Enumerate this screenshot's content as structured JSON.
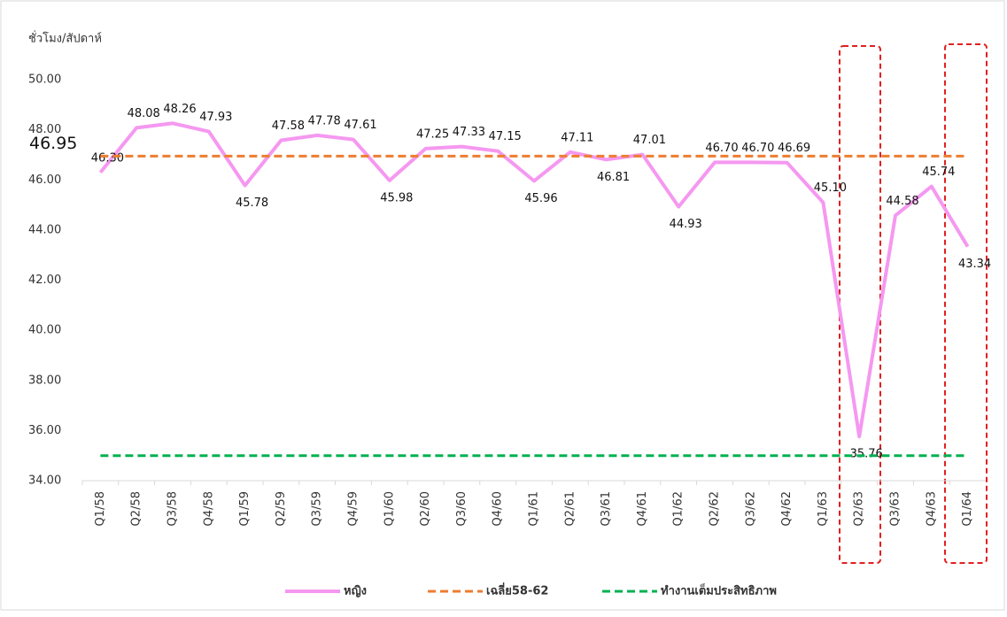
{
  "chart_data": {
    "type": "line",
    "y_axis_label": "ชั่วโมง/สัปดาห์",
    "categories": [
      "Q1/58",
      "Q2/58",
      "Q3/58",
      "Q4/58",
      "Q1/59",
      "Q2/59",
      "Q3/59",
      "Q4/59",
      "Q1/60",
      "Q2/60",
      "Q3/60",
      "Q4/60",
      "Q1/61",
      "Q2/61",
      "Q3/61",
      "Q4/61",
      "Q1/62",
      "Q2/62",
      "Q3/62",
      "Q4/62",
      "Q1/63",
      "Q2/63",
      "Q3/63",
      "Q4/63",
      "Q1/64"
    ],
    "series": [
      {
        "name": "หญิง",
        "color": "#f598f0",
        "dash": false,
        "values": [
          46.3,
          48.08,
          48.26,
          47.93,
          45.78,
          47.58,
          47.78,
          47.61,
          45.98,
          47.25,
          47.33,
          47.15,
          45.96,
          47.11,
          46.81,
          47.01,
          44.93,
          46.7,
          46.7,
          46.69,
          45.1,
          35.76,
          44.58,
          45.74,
          43.34
        ],
        "value_labels": [
          "46.30",
          "48.08",
          "48.26",
          "47.93",
          "45.78",
          "47.58",
          "47.78",
          "47.61",
          "45.98",
          "47.25",
          "47.33",
          "47.15",
          "45.96",
          "47.11",
          "46.81",
          "47.01",
          "44.93",
          "46.70",
          "46.70",
          "46.69",
          "45.10",
          "35.76",
          "44.58",
          "45.74",
          "43.34"
        ]
      },
      {
        "name": "เฉลี่ย58-62",
        "color": "#ed7d31",
        "dash": true,
        "values": [
          46.95,
          46.95,
          46.95,
          46.95,
          46.95,
          46.95,
          46.95,
          46.95,
          46.95,
          46.95,
          46.95,
          46.95,
          46.95,
          46.95,
          46.95,
          46.95,
          46.95,
          46.95,
          46.95,
          46.95,
          46.95,
          46.95,
          46.95,
          46.95,
          46.95
        ],
        "value_labels": [
          "46.95",
          null,
          null,
          null,
          null,
          null,
          null,
          null,
          null,
          null,
          null,
          null,
          null,
          null,
          null,
          null,
          null,
          null,
          null,
          null,
          null,
          null,
          null,
          null,
          null
        ]
      },
      {
        "name": "ทำงานเต็มประสิทธิภาพ",
        "color": "#00b050",
        "dash": true,
        "values": [
          35,
          35,
          35,
          35,
          35,
          35,
          35,
          35,
          35,
          35,
          35,
          35,
          35,
          35,
          35,
          35,
          35,
          35,
          35,
          35,
          35,
          35,
          35,
          35,
          35
        ]
      }
    ],
    "ylim": [
      34,
      50
    ],
    "yticks": [
      {
        "value": 34,
        "label": "34.00"
      },
      {
        "value": 36,
        "label": "36.00"
      },
      {
        "value": 38,
        "label": "38.00"
      },
      {
        "value": 40,
        "label": "40.00"
      },
      {
        "value": 42,
        "label": "42.00"
      },
      {
        "value": 44,
        "label": "44.00"
      },
      {
        "value": 46,
        "label": "46.00"
      },
      {
        "value": 48,
        "label": "48.00"
      },
      {
        "value": 50,
        "label": "50.00"
      }
    ],
    "grid": false,
    "legend": "bottom"
  }
}
